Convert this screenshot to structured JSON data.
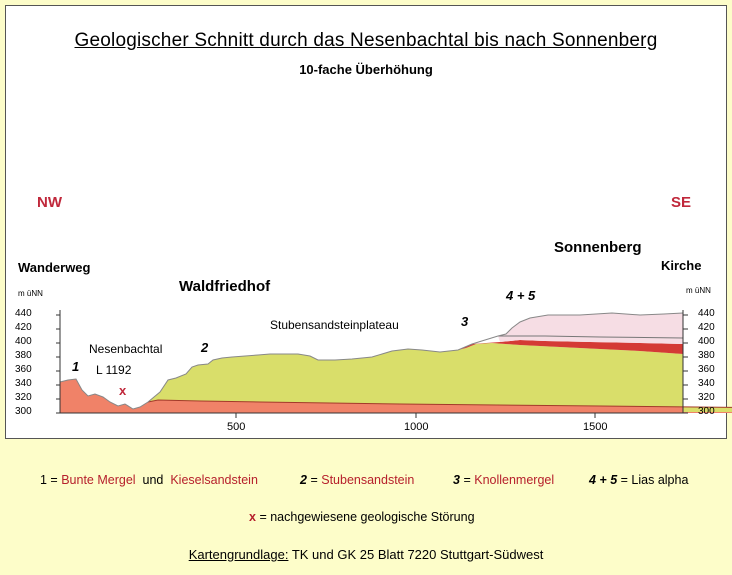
{
  "title": "Geologischer Schnitt durch das Nesenbachtal bis nach Sonnenberg",
  "subtitle": "10-fache Überhöhung",
  "directions": {
    "left": "NW",
    "right": "SE"
  },
  "places": {
    "wanderweg": "Wanderweg",
    "waldfriedhof": "Waldfriedhof",
    "nesenbachtal": "Nesenbachtal",
    "road": "L 1192",
    "plateau": "Stubensandsteinplateau",
    "sonnenberg": "Sonnenberg",
    "kirche": "Kirche"
  },
  "unit_label": "m üNN",
  "y_ticks": [
    "440",
    "420",
    "400",
    "380",
    "360",
    "340",
    "320",
    "300"
  ],
  "x_ticks": [
    "500",
    "1000",
    "1500"
  ],
  "markers": {
    "one": "1",
    "two": "2",
    "three": "3",
    "four_five": "4 + 5",
    "fault": "x"
  },
  "legend": {
    "l1_num": "1 =",
    "l1_a": "Bunte Mergel",
    "l1_and": "und",
    "l1_b": "Kieselsandstein",
    "l2_num": "2",
    "l2_eq": "=",
    "l2_name": "Stubensandstein",
    "l3_num": "3",
    "l3_eq": "=",
    "l3_name": "Knollenmergel",
    "l45_num": "4 + 5",
    "l45_eq": "= Lias alpha",
    "fault_x": "x",
    "fault_text": "= nachgewiesene geologische Störung"
  },
  "source": {
    "label": "Kartengrundlage:",
    "text": "TK und GK 25 Blatt 7220 Stuttgart-Südwest"
  },
  "colors": {
    "background": "#fdfdc9",
    "layer1": "#f08268",
    "layer2": "#d9de6a",
    "layer3": "#d43a35",
    "layer45": "#f6dde4",
    "label_red": "#b6202c"
  },
  "chart_data": {
    "type": "cross-section",
    "x_unit": "m",
    "y_unit": "m üNN",
    "xlim": [
      0,
      1740
    ],
    "ylim": [
      300,
      445
    ],
    "x_ticks": [
      500,
      1000,
      1500
    ],
    "y_ticks": [
      300,
      320,
      340,
      360,
      380,
      400,
      420,
      440
    ],
    "layers": [
      {
        "id": "1",
        "name": "Bunte Mergel und Kieselsandstein"
      },
      {
        "id": "2",
        "name": "Stubensandstein"
      },
      {
        "id": "3",
        "name": "Knollenmergel"
      },
      {
        "id": "4 + 5",
        "name": "Lias alpha"
      }
    ]
  }
}
